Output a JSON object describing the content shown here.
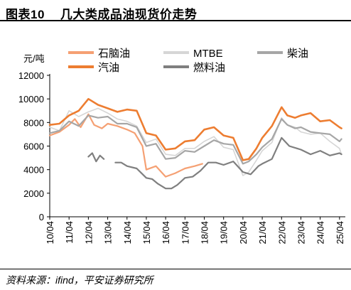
{
  "header": {
    "figure_label": "图表10",
    "title": "几大类成品油现货价走势"
  },
  "footer": {
    "source": "资料来源：ifind，平安证券研究所"
  },
  "chart_data": {
    "type": "line",
    "title": "几大类成品油现货价走势",
    "ylabel": "元/吨",
    "xlabel": "",
    "ylim": [
      0,
      12000
    ],
    "yticks": [
      "0",
      "2000",
      "4000",
      "6000",
      "8000",
      "10000",
      "12000"
    ],
    "xticks": [
      "10/04",
      "11/04",
      "12/04",
      "13/04",
      "14/04",
      "15/04",
      "16/04",
      "17/04",
      "18/04",
      "19/04",
      "20/04",
      "21/04",
      "22/04",
      "23/04",
      "24/04",
      "25/04"
    ],
    "grid": false,
    "legend_position": "top",
    "series": [
      {
        "name": "石脑油",
        "color": "#f5a073",
        "width": 2.2,
        "x": [
          2010.0,
          2010.5,
          2011.0,
          2011.3,
          2011.6,
          2012.0,
          2012.3,
          2012.7,
          2013.0,
          2013.5,
          2014.0,
          2014.4,
          2014.8,
          2015.0,
          2015.5,
          2016.0,
          2016.5,
          2017.0,
          2017.5,
          2017.9
        ],
        "y": [
          6900,
          7200,
          7800,
          8300,
          7600,
          8700,
          7800,
          7500,
          7900,
          7700,
          7400,
          7100,
          6000,
          4000,
          4300,
          3400,
          3700,
          4100,
          4300,
          4500
        ]
      },
      {
        "name": "MTBE",
        "color": "#d6d6d6",
        "width": 1.6,
        "x": [
          2010.0,
          2010.5,
          2011.0,
          2011.5,
          2012.0,
          2012.5,
          2013.0,
          2013.5,
          2014.0,
          2014.5,
          2015.0,
          2015.5,
          2016.0,
          2016.5,
          2017.0,
          2017.5,
          2018.0,
          2018.5,
          2019.0,
          2019.5,
          2020.0,
          2020.3,
          2020.7,
          2021.0,
          2021.5,
          2022.0,
          2022.3,
          2022.7,
          2023.0,
          2023.5,
          2024.0,
          2024.5,
          2025.0,
          2025.1
        ],
        "y": [
          7600,
          7300,
          9000,
          8500,
          8900,
          9200,
          8800,
          8300,
          8100,
          7700,
          6300,
          6600,
          5300,
          5200,
          5800,
          5800,
          6400,
          6800,
          5900,
          5700,
          3500,
          3800,
          4800,
          5600,
          6300,
          8400,
          7800,
          7600,
          7200,
          7000,
          7100,
          6400,
          5800,
          5300
        ]
      },
      {
        "name": "柴油",
        "color": "#a6a6a6",
        "width": 2.2,
        "x": [
          2010.0,
          2010.5,
          2011.0,
          2011.5,
          2012.0,
          2012.5,
          2013.0,
          2013.5,
          2014.0,
          2014.5,
          2015.0,
          2015.5,
          2016.0,
          2016.5,
          2017.0,
          2017.5,
          2018.0,
          2018.5,
          2019.0,
          2019.5,
          2020.0,
          2020.3,
          2020.7,
          2021.0,
          2021.5,
          2022.0,
          2022.3,
          2022.7,
          2023.0,
          2023.5,
          2024.0,
          2024.5,
          2025.0,
          2025.1
        ],
        "y": [
          7100,
          7300,
          8100,
          7700,
          8600,
          8400,
          8500,
          7900,
          7900,
          7600,
          6000,
          6200,
          4900,
          5000,
          5600,
          5500,
          6000,
          6500,
          6200,
          6100,
          4500,
          4700,
          5300,
          5900,
          6600,
          8300,
          7800,
          7500,
          7600,
          7200,
          7100,
          7000,
          6400,
          6600
        ]
      },
      {
        "name": "汽油",
        "color": "#ed7d31",
        "width": 2.6,
        "x": [
          2010.0,
          2010.5,
          2011.0,
          2011.5,
          2012.0,
          2012.5,
          2013.0,
          2013.5,
          2014.0,
          2014.5,
          2015.0,
          2015.5,
          2016.0,
          2016.5,
          2017.0,
          2017.5,
          2018.0,
          2018.5,
          2019.0,
          2019.5,
          2020.0,
          2020.3,
          2020.7,
          2021.0,
          2021.5,
          2022.0,
          2022.3,
          2022.7,
          2023.0,
          2023.5,
          2024.0,
          2024.5,
          2025.0,
          2025.1
        ],
        "y": [
          7800,
          7900,
          8600,
          9000,
          10000,
          9500,
          9200,
          8900,
          9100,
          9000,
          7100,
          6900,
          5700,
          5800,
          6400,
          6500,
          7400,
          7600,
          6900,
          6700,
          4800,
          4900,
          5800,
          6700,
          7700,
          9300,
          8600,
          8400,
          8600,
          8800,
          8100,
          8200,
          7600,
          7500
        ]
      },
      {
        "name": "燃料油",
        "color": "#7f7f7f",
        "width": 2.2,
        "x": [
          2012.0,
          2012.2,
          2012.4,
          2012.6,
          2012.8,
          2013.0,
          2013.4,
          2013.7,
          2014.0,
          2014.5,
          2015.0,
          2015.3,
          2015.6,
          2016.0,
          2016.3,
          2016.6,
          2017.0,
          2017.4,
          2017.8,
          2018.2,
          2018.6,
          2019.0,
          2019.5,
          2020.0,
          2020.4,
          2020.8,
          2021.0,
          2021.5,
          2022.0,
          2022.4,
          2022.8,
          2023.0,
          2023.5,
          2024.0,
          2024.5,
          2025.0,
          2025.1
        ],
        "y": [
          5100,
          5400,
          4700,
          5200,
          4900,
          null,
          4600,
          4600,
          4300,
          4100,
          3300,
          3200,
          2800,
          2400,
          2400,
          2700,
          3300,
          3400,
          3900,
          4600,
          4600,
          4400,
          4700,
          3800,
          3600,
          4300,
          4500,
          4900,
          6700,
          6000,
          5800,
          5700,
          5300,
          5600,
          5200,
          5400,
          5300
        ]
      }
    ]
  }
}
